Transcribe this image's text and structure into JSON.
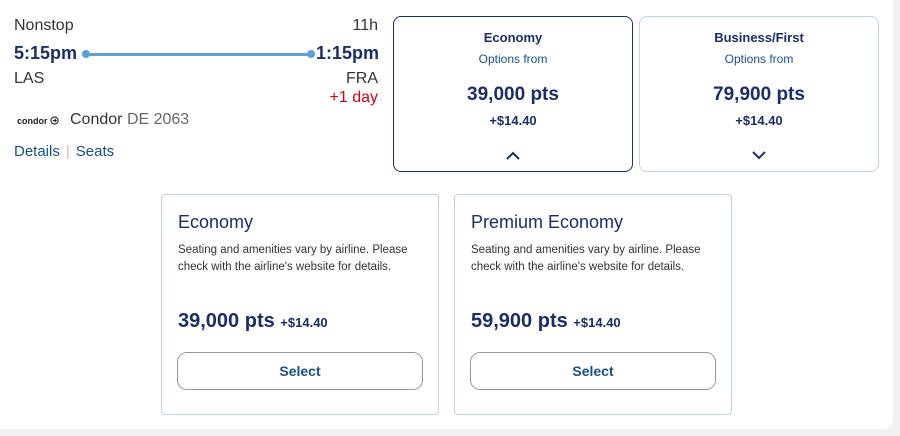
{
  "flight": {
    "stops": "Nonstop",
    "duration": "11h",
    "depart_time": "5:15pm",
    "arrive_time": "1:15pm",
    "origin": "LAS",
    "destination": "FRA",
    "day_offset": "+1 day",
    "airline_logo_text": "condor",
    "airline": "Condor",
    "flight_number": "DE 2063",
    "details_link": "Details",
    "seats_link": "Seats"
  },
  "fare_classes": [
    {
      "name": "Economy",
      "from_label": "Options from",
      "points": "39,000 pts",
      "tax": "+$14.40",
      "selected": true,
      "chevron": "chevron-up-icon"
    },
    {
      "name": "Business/First",
      "from_label": "Options from",
      "points": "79,900 pts",
      "tax": "+$14.40",
      "selected": false,
      "chevron": "chevron-down-icon"
    }
  ],
  "sub_fares": [
    {
      "name": "Economy",
      "description": "Seating and amenities vary by airline. Please check with the airline's website for details.",
      "points": "39,000 pts",
      "tax": "+$14.40",
      "button": "Select"
    },
    {
      "name": "Premium Economy",
      "description": "Seating and amenities vary by airline. Please check with the airline's website for details.",
      "points": "59,900 pts",
      "tax": "+$14.40",
      "button": "Select"
    }
  ],
  "colors": {
    "brand_navy": "#1a2e6b",
    "link_blue": "#1a4f8b",
    "route_line": "#5aa2d6",
    "day_offset_red": "#d0021b",
    "card_border": "#b9d4e8"
  }
}
